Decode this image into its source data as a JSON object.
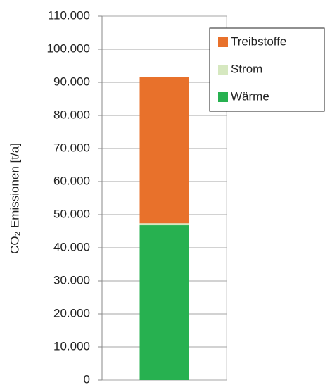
{
  "chart_data": {
    "type": "bar",
    "stacked": true,
    "y_label": "CO₂ Emissionen [t/a]",
    "categories": [
      null
    ],
    "series": [
      {
        "name": "Wärme",
        "color": "#27b150",
        "values": [
          46800
        ]
      },
      {
        "name": "Strom",
        "color": "#d6e8c0",
        "values": [
          600
        ]
      },
      {
        "name": "Treibstoffe",
        "color": "#e8712b",
        "values": [
          44300
        ]
      }
    ],
    "ylim": [
      0,
      110000
    ],
    "yticks": [
      0,
      {
        "value": 10000,
        "label": "10.000"
      },
      {
        "value": 20000,
        "label": "20.000"
      },
      {
        "value": 30000,
        "label": "30.000"
      },
      {
        "value": 40000,
        "label": "40.000"
      },
      {
        "value": 50000,
        "label": "50.000"
      },
      {
        "value": 60000,
        "label": "60.000"
      },
      {
        "value": 70000,
        "label": "70.000"
      },
      {
        "value": 80000,
        "label": "80.000"
      },
      {
        "value": 90000,
        "label": "90.000"
      },
      {
        "value": 100000,
        "label": "100.000"
      },
      {
        "value": 110000,
        "label": "110.000"
      }
    ],
    "grid": true,
    "legend": "upper right"
  }
}
